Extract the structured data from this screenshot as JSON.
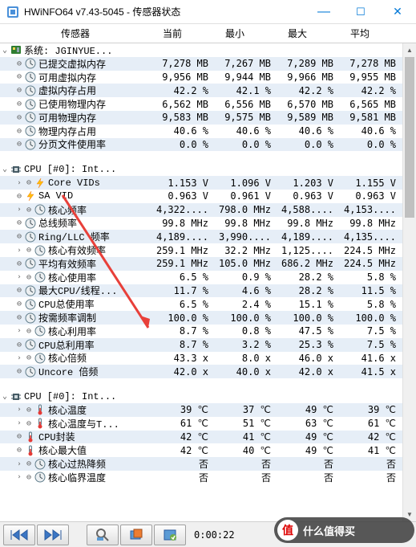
{
  "window": {
    "title": "HWiNFO64 v7.43-5045 - 传感器状态",
    "minimize": "—",
    "maximize": "☐",
    "close": "✕"
  },
  "columns": {
    "sensor": "传感器",
    "current": "当前",
    "min": "最小",
    "max": "最大",
    "avg": "平均"
  },
  "groups": [
    {
      "icon": "board",
      "label": "系统: JGINYUE...",
      "rows": [
        {
          "icon": "clock",
          "hl": 1,
          "label": "已提交虚拟内存",
          "c": "7,278 MB",
          "mn": "7,267 MB",
          "mx": "7,289 MB",
          "av": "7,278 MB"
        },
        {
          "icon": "clock",
          "label": "可用虚拟内存",
          "c": "9,956 MB",
          "mn": "9,944 MB",
          "mx": "9,966 MB",
          "av": "9,955 MB"
        },
        {
          "icon": "clock",
          "hl": 1,
          "label": "虚拟内存占用",
          "c": "42.2 %",
          "mn": "42.1 %",
          "mx": "42.2 %",
          "av": "42.2 %"
        },
        {
          "icon": "clock",
          "label": "已使用物理内存",
          "c": "6,562 MB",
          "mn": "6,556 MB",
          "mx": "6,570 MB",
          "av": "6,565 MB"
        },
        {
          "icon": "clock",
          "hl": 1,
          "label": "可用物理内存",
          "c": "9,583 MB",
          "mn": "9,575 MB",
          "mx": "9,589 MB",
          "av": "9,581 MB"
        },
        {
          "icon": "clock",
          "label": "物理内存占用",
          "c": "40.6 %",
          "mn": "40.6 %",
          "mx": "40.6 %",
          "av": "40.6 %"
        },
        {
          "icon": "clock",
          "hl": 1,
          "label": "分页文件使用率",
          "c": "0.0 %",
          "mn": "0.0 %",
          "mx": "0.0 %",
          "av": "0.0 %"
        }
      ]
    },
    {
      "icon": "cpu",
      "label": "CPU [#0]: Int...",
      "rows": [
        {
          "sub": 1,
          "icon": "bolt",
          "hl": 1,
          "label": "Core VIDs",
          "c": "1.153 V",
          "mn": "1.096 V",
          "mx": "1.203 V",
          "av": "1.155 V"
        },
        {
          "icon": "bolt",
          "label": "SA VID",
          "c": "0.963 V",
          "mn": "0.961 V",
          "mx": "0.963 V",
          "av": "0.963 V"
        },
        {
          "sub": 1,
          "icon": "clock",
          "hl": 1,
          "label": "核心频率",
          "c": "4,322....",
          "mn": "798.0 MHz",
          "mx": "4,588....",
          "av": "4,153...."
        },
        {
          "icon": "clock",
          "label": "总线频率",
          "c": "99.8 MHz",
          "mn": "99.8 MHz",
          "mx": "99.8 MHz",
          "av": "99.8 MHz"
        },
        {
          "icon": "clock",
          "hl": 1,
          "label": "Ring/LLC 频率",
          "c": "4,189....",
          "mn": "3,990....",
          "mx": "4,189....",
          "av": "4,135...."
        },
        {
          "sub": 1,
          "icon": "clock",
          "label": "核心有效频率",
          "c": "259.1 MHz",
          "mn": "32.2 MHz",
          "mx": "1,125....",
          "av": "224.5 MHz"
        },
        {
          "icon": "clock",
          "hl": 1,
          "label": "平均有效频率",
          "c": "259.1 MHz",
          "mn": "105.0 MHz",
          "mx": "686.2 MHz",
          "av": "224.5 MHz"
        },
        {
          "sub": 1,
          "icon": "clock",
          "label": "核心使用率",
          "c": "6.5 %",
          "mn": "0.9 %",
          "mx": "28.2 %",
          "av": "5.8 %"
        },
        {
          "icon": "clock",
          "hl": 1,
          "label": "最大CPU/线程...",
          "c": "11.7 %",
          "mn": "4.6 %",
          "mx": "28.2 %",
          "av": "11.5 %"
        },
        {
          "icon": "clock",
          "label": "CPU总使用率",
          "c": "6.5 %",
          "mn": "2.4 %",
          "mx": "15.1 %",
          "av": "5.8 %"
        },
        {
          "icon": "clock",
          "hl": 1,
          "label": "按需频率调制",
          "c": "100.0 %",
          "mn": "100.0 %",
          "mx": "100.0 %",
          "av": "100.0 %"
        },
        {
          "sub": 1,
          "icon": "clock",
          "label": "核心利用率",
          "c": "8.7 %",
          "mn": "0.8 %",
          "mx": "47.5 %",
          "av": "7.5 %"
        },
        {
          "icon": "clock",
          "hl": 1,
          "label": "CPU总利用率",
          "c": "8.7 %",
          "mn": "3.2 %",
          "mx": "25.3 %",
          "av": "7.5 %"
        },
        {
          "sub": 1,
          "icon": "clock",
          "label": "核心倍频",
          "c": "43.3 x",
          "mn": "8.0 x",
          "mx": "46.0 x",
          "av": "41.6 x"
        },
        {
          "icon": "clock",
          "hl": 1,
          "label": "Uncore 倍频",
          "c": "42.0 x",
          "mn": "40.0 x",
          "mx": "42.0 x",
          "av": "41.5 x"
        }
      ]
    },
    {
      "icon": "cpu",
      "label": "CPU [#0]: Int...",
      "rows": [
        {
          "sub": 1,
          "icon": "therm",
          "hl": 1,
          "label": "核心温度",
          "c": "39 ℃",
          "mn": "37 ℃",
          "mx": "49 ℃",
          "av": "39 ℃"
        },
        {
          "sub": 1,
          "icon": "therm",
          "label": "核心温度与T...",
          "c": "61 ℃",
          "mn": "51 ℃",
          "mx": "63 ℃",
          "av": "61 ℃"
        },
        {
          "icon": "therm",
          "hl": 1,
          "label": "CPU封装",
          "c": "42 ℃",
          "mn": "41 ℃",
          "mx": "49 ℃",
          "av": "42 ℃"
        },
        {
          "icon": "therm",
          "label": "核心最大值",
          "c": "42 ℃",
          "mn": "40 ℃",
          "mx": "49 ℃",
          "av": "41 ℃"
        },
        {
          "sub": 1,
          "icon": "clock",
          "hl": 1,
          "label": "核心过热降频",
          "c": "否",
          "mn": "否",
          "mx": "否",
          "av": "否"
        },
        {
          "sub": 1,
          "icon": "clock",
          "label": "核心临界温度",
          "c": "否",
          "mn": "否",
          "mx": "否",
          "av": "否"
        }
      ]
    }
  ],
  "toolbar": {
    "time": "0:00:22"
  },
  "watermark": {
    "char": "值",
    "text": "什么值得买"
  },
  "colors": {
    "highlight": "#e6eef7",
    "titlebar_accent": "#0078d7",
    "red_arrow": "#e8403a"
  }
}
